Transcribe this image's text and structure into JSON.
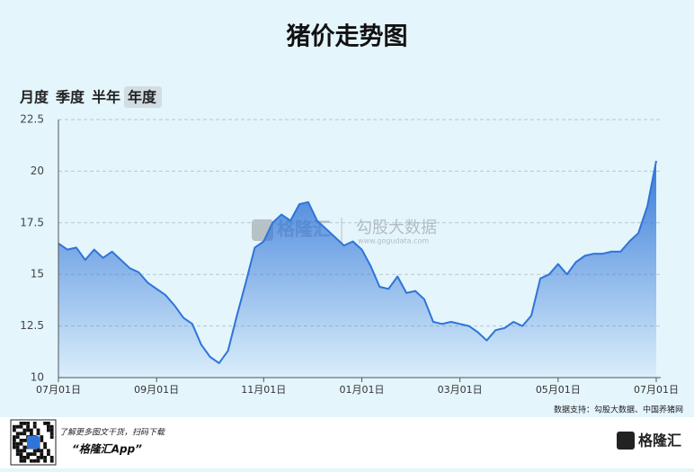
{
  "tabs": [
    "月度",
    "季度",
    "半年",
    "年度"
  ],
  "selected_tab": 3,
  "watermark": {
    "brand": "格隆汇",
    "provider": "勾股大数据",
    "url": "www.gogudata.com"
  },
  "source": "数据支持：勾股大数据、中国养猪网",
  "footer": {
    "tagline": "了解更多图文干货，扫码下载",
    "app": "“格隆汇App”",
    "logo": "格隆汇"
  },
  "chart_data": {
    "type": "area",
    "title": "猪价走势图",
    "color": "#2f74d8",
    "categories": [
      "07月01日",
      null,
      null,
      null,
      null,
      null,
      null,
      null,
      null,
      null,
      null,
      "09月01日",
      null,
      null,
      null,
      null,
      null,
      null,
      null,
      null,
      null,
      null,
      null,
      "11月01日",
      null,
      null,
      null,
      null,
      null,
      null,
      null,
      null,
      null,
      null,
      "01月01日",
      null,
      null,
      null,
      null,
      null,
      null,
      null,
      null,
      null,
      null,
      "03月01日",
      null,
      null,
      null,
      null,
      null,
      null,
      null,
      null,
      null,
      null,
      "05月01日",
      null,
      null,
      null,
      null,
      null,
      null,
      null,
      null,
      null,
      null,
      "07月01日"
    ],
    "values": [
      16.5,
      16.2,
      16.3,
      15.7,
      16.2,
      15.8,
      16.1,
      15.7,
      15.3,
      15.1,
      14.6,
      14.3,
      14.0,
      13.5,
      12.9,
      12.6,
      11.6,
      11.0,
      10.7,
      11.3,
      13.0,
      14.6,
      16.3,
      16.6,
      17.5,
      17.9,
      17.6,
      18.4,
      18.5,
      17.6,
      17.2,
      16.8,
      16.4,
      16.6,
      16.2,
      15.4,
      14.4,
      14.3,
      14.9,
      14.1,
      14.2,
      13.8,
      12.7,
      12.6,
      12.7,
      12.6,
      12.5,
      12.2,
      11.8,
      12.3,
      12.4,
      12.7,
      12.5,
      13.0,
      14.8,
      15.0,
      15.5,
      15.0,
      15.6,
      15.9,
      16.0,
      16.0,
      16.1,
      16.1,
      16.6,
      17.0,
      18.3,
      20.5
    ],
    "ylim": [
      10,
      22.5
    ],
    "yticks": [
      10,
      12.5,
      15,
      17.5,
      20,
      22.5
    ],
    "grid": true
  }
}
